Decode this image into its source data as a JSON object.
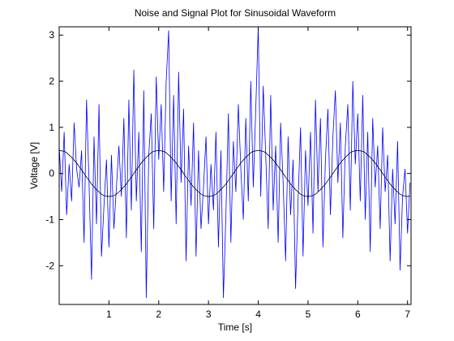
{
  "chart_data": {
    "type": "line",
    "title": "Noise and Signal Plot for Sinusoidal Waveform",
    "x_label": "Time [s]",
    "y_label": "Voltage [V]",
    "x": [
      0,
      0.05,
      0.1,
      0.15,
      0.2,
      0.25,
      0.3,
      0.35,
      0.4,
      0.45,
      0.5,
      0.55,
      0.6,
      0.65,
      0.7,
      0.75,
      0.8,
      0.85,
      0.9,
      0.95,
      1,
      1.05,
      1.1,
      1.15,
      1.2,
      1.25,
      1.3,
      1.35,
      1.4,
      1.45,
      1.5,
      1.55,
      1.6,
      1.65,
      1.7,
      1.75,
      1.8,
      1.85,
      1.9,
      1.95,
      2,
      2.05,
      2.1,
      2.15,
      2.2,
      2.25,
      2.3,
      2.35,
      2.4,
      2.45,
      2.5,
      2.55,
      2.6,
      2.65,
      2.7,
      2.75,
      2.8,
      2.85,
      2.9,
      2.95,
      3,
      3.05,
      3.1,
      3.15,
      3.2,
      3.25,
      3.3,
      3.35,
      3.4,
      3.45,
      3.5,
      3.55,
      3.6,
      3.65,
      3.7,
      3.75,
      3.8,
      3.85,
      3.9,
      3.95,
      4,
      4.05,
      4.1,
      4.15,
      4.2,
      4.25,
      4.3,
      4.35,
      4.4,
      4.45,
      4.5,
      4.55,
      4.6,
      4.65,
      4.7,
      4.75,
      4.8,
      4.85,
      4.9,
      4.95,
      5,
      5.05,
      5.1,
      5.15,
      5.2,
      5.25,
      5.3,
      5.35,
      5.4,
      5.45,
      5.5,
      5.55,
      5.6,
      5.65,
      5.7,
      5.75,
      5.8,
      5.85,
      5.9,
      5.95,
      6,
      6.05,
      6.1,
      6.15,
      6.2,
      6.25,
      6.3,
      6.35,
      6.4,
      6.45,
      6.5,
      6.55,
      6.6,
      6.65,
      6.7,
      6.75,
      6.8,
      6.85,
      6.9,
      6.95,
      7,
      7.05
    ],
    "series": [
      {
        "color": "#0000ff",
        "values": [
          0.6,
          -0.4,
          0.9,
          -0.9,
          0.2,
          -0.6,
          1.1,
          0.1,
          -0.3,
          0.5,
          -1.5,
          1.6,
          -0.2,
          -2.3,
          0.8,
          -1.1,
          1.5,
          -1.8,
          -0.7,
          0.3,
          -1.6,
          0.4,
          -1.2,
          -0.3,
          0.6,
          -0.5,
          1.2,
          -1.4,
          1.6,
          -0.8,
          2.25,
          -0.6,
          0.9,
          -1.7,
          1.8,
          -2.7,
          0.4,
          1.3,
          -1.2,
          2.1,
          0.3,
          1.5,
          -0.4,
          2.0,
          3.1,
          -0.6,
          1.7,
          -1.1,
          2.2,
          -0.2,
          1.4,
          -1.9,
          0.6,
          -0.7,
          1.1,
          -1.8,
          0.5,
          -1.2,
          -0.3,
          0.8,
          -1.1,
          0.2,
          -0.8,
          0.9,
          -1.6,
          0.5,
          -2.7,
          -0.9,
          1.3,
          -1.5,
          0.7,
          -0.4,
          1.5,
          0.1,
          -1.0,
          1.2,
          -0.6,
          2.0,
          -0.3,
          1.4,
          3.2,
          -0.5,
          1.9,
          0.4,
          -1.2,
          1.7,
          -0.8,
          0.6,
          -1.5,
          1.1,
          -0.2,
          -1.9,
          0.8,
          -0.9,
          0.3,
          -2.5,
          -0.6,
          1.0,
          -1.8,
          0.5,
          -0.7,
          0.9,
          -1.3,
          1.6,
          -0.4,
          1.2,
          -1.6,
          0.3,
          1.4,
          -0.9,
          0.8,
          1.8,
          -0.2,
          1.1,
          -1.4,
          0.6,
          1.5,
          -0.8,
          2.0,
          0.2,
          1.3,
          -0.6,
          1.7,
          -1.0,
          0.9,
          -1.7,
          1.2,
          -0.3,
          0.6,
          -1.2,
          1.0,
          -0.4,
          0.4,
          -1.9,
          0.1,
          -1.1,
          0.7,
          -2.1,
          -0.5,
          0.1,
          -1.3,
          -0.2
        ]
      },
      {
        "color": "#000000",
        "values": [
          0.5,
          0.49,
          0.48,
          0.45,
          0.4,
          0.35,
          0.29,
          0.23,
          0.15,
          0.08,
          0,
          -0.08,
          -0.15,
          -0.23,
          -0.29,
          -0.35,
          -0.4,
          -0.45,
          -0.48,
          -0.49,
          -0.5,
          -0.49,
          -0.48,
          -0.45,
          -0.4,
          -0.35,
          -0.29,
          -0.23,
          -0.15,
          -0.08,
          0,
          0.08,
          0.15,
          0.23,
          0.29,
          0.35,
          0.4,
          0.45,
          0.48,
          0.49,
          0.5,
          0.49,
          0.48,
          0.45,
          0.4,
          0.35,
          0.29,
          0.23,
          0.15,
          0.08,
          0,
          -0.08,
          -0.15,
          -0.23,
          -0.29,
          -0.35,
          -0.4,
          -0.45,
          -0.48,
          -0.49,
          -0.5,
          -0.49,
          -0.48,
          -0.45,
          -0.4,
          -0.35,
          -0.29,
          -0.23,
          -0.15,
          -0.08,
          0,
          0.08,
          0.15,
          0.23,
          0.29,
          0.35,
          0.4,
          0.45,
          0.48,
          0.49,
          0.5,
          0.49,
          0.48,
          0.45,
          0.4,
          0.35,
          0.29,
          0.23,
          0.15,
          0.08,
          0,
          -0.08,
          -0.15,
          -0.23,
          -0.29,
          -0.35,
          -0.4,
          -0.45,
          -0.48,
          -0.49,
          -0.5,
          -0.49,
          -0.48,
          -0.45,
          -0.4,
          -0.35,
          -0.29,
          -0.23,
          -0.15,
          -0.08,
          0,
          0.08,
          0.15,
          0.23,
          0.29,
          0.35,
          0.4,
          0.45,
          0.48,
          0.49,
          0.5,
          0.49,
          0.48,
          0.45,
          0.4,
          0.35,
          0.29,
          0.23,
          0.15,
          0.08,
          0,
          -0.08,
          -0.15,
          -0.23,
          -0.29,
          -0.35,
          -0.4,
          -0.45,
          -0.48,
          -0.49,
          -0.5,
          -0.49
        ]
      }
    ],
    "xlim": [
      0,
      7.07
    ],
    "ylim": [
      -2.84,
      3.18
    ],
    "xticks": [
      1,
      2,
      3,
      4,
      5,
      6,
      7
    ],
    "yticks": [
      -2,
      -1,
      0,
      1,
      2,
      3
    ]
  }
}
